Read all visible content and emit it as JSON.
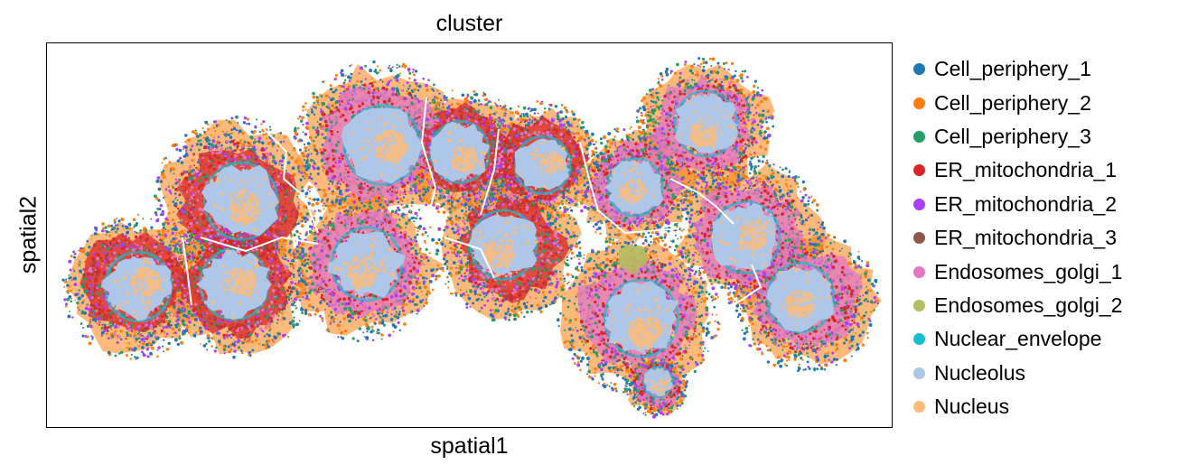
{
  "chart_data": {
    "type": "scatter",
    "title": "cluster",
    "xlabel": "spatial1",
    "ylabel": "spatial2",
    "grid": false,
    "axis_ticks": false,
    "legend_position": "right",
    "categories": [
      "Cell_periphery_1",
      "Cell_periphery_2",
      "Cell_periphery_3",
      "ER_mitochondria_1",
      "ER_mitochondria_2",
      "ER_mitochondria_3",
      "Endosomes_golgi_1",
      "Endosomes_golgi_2",
      "Nuclear_envelope",
      "Nucleolus",
      "Nucleus"
    ],
    "colors": {
      "Cell_periphery_1": "#1f77b4",
      "Cell_periphery_2": "#ff7f0e",
      "Cell_periphery_3": "#279e68",
      "ER_mitochondria_1": "#d62728",
      "ER_mitochondria_2": "#aa40fc",
      "ER_mitochondria_3": "#8c564b",
      "Endosomes_golgi_1": "#e377c2",
      "Endosomes_golgi_2": "#b5bd61",
      "Nuclear_envelope": "#17becf",
      "Nucleolus": "#aec7e8",
      "Nucleus": "#ffbb78"
    }
  }
}
